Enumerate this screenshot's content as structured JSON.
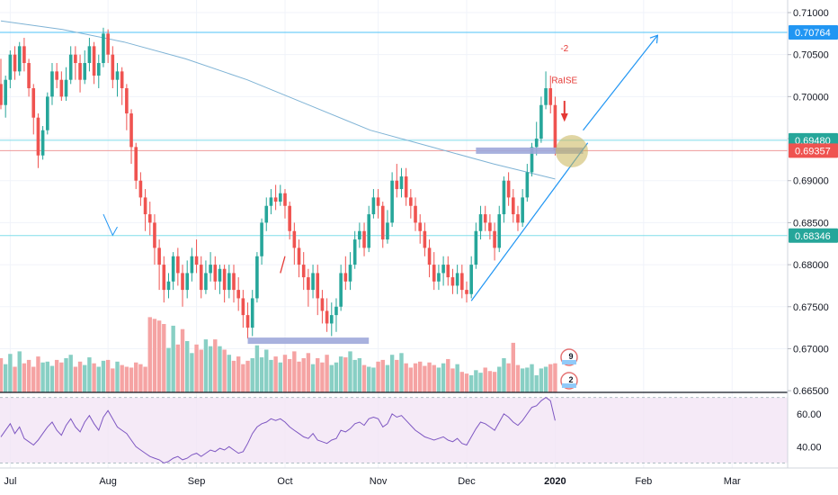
{
  "chart_data": {
    "type": "candlestick",
    "symbol_hint": "AUDUSD",
    "y_ticks": [
      "0.71000",
      "0.70500",
      "0.70000",
      "0.69500",
      "0.69000",
      "0.68500",
      "0.68000",
      "0.67500",
      "0.67000",
      "0.66500"
    ],
    "y_tick_values": [
      0.71,
      0.705,
      0.7,
      0.695,
      0.69,
      0.685,
      0.68,
      0.675,
      0.67,
      0.665
    ],
    "ylim": [
      0.6648,
      0.7115
    ],
    "x_ticks": [
      "Jul",
      "Aug",
      "Sep",
      "Oct",
      "Nov",
      "Dec",
      "2020",
      "Feb",
      "Mar"
    ],
    "x_tick_bold": [
      false,
      false,
      false,
      false,
      false,
      false,
      true,
      false,
      false
    ],
    "rsi_ticks": [
      "60.00",
      "40.00"
    ],
    "rsi_tick_values": [
      60,
      40
    ],
    "rsi_ylim": [
      27,
      72
    ],
    "price_tags": [
      {
        "label": "0.70764",
        "value": 0.70764,
        "color": "#2196f3"
      },
      {
        "label": "0.69480",
        "value": 0.6948,
        "color": "#26a69a"
      },
      {
        "label": "0.69357",
        "value": 0.69357,
        "color": "#ef5350"
      },
      {
        "label": "0.68346",
        "value": 0.68346,
        "color": "#26a69a"
      }
    ],
    "horizontal_lines": [
      {
        "value": 0.70764,
        "color": "#4fc3f7"
      },
      {
        "value": 0.6948,
        "color": "#80deea"
      },
      {
        "value": 0.69357,
        "color": "#ef9a9a"
      },
      {
        "value": 0.68346,
        "color": "#80deea"
      }
    ],
    "candles": [
      [
        0.7015,
        0.699,
        0.7045,
        0.6985
      ],
      [
        0.699,
        0.702,
        0.7025,
        0.6975
      ],
      [
        0.702,
        0.705,
        0.7055,
        0.701
      ],
      [
        0.705,
        0.703,
        0.706,
        0.702
      ],
      [
        0.703,
        0.706,
        0.7065,
        0.7025
      ],
      [
        0.706,
        0.704,
        0.707,
        0.703
      ],
      [
        0.704,
        0.701,
        0.7045,
        0.7
      ],
      [
        0.701,
        0.6975,
        0.7015,
        0.6955
      ],
      [
        0.6975,
        0.693,
        0.698,
        0.6915
      ],
      [
        0.693,
        0.696,
        0.6965,
        0.6925
      ],
      [
        0.696,
        0.7,
        0.7005,
        0.6955
      ],
      [
        0.7,
        0.703,
        0.704,
        0.699
      ],
      [
        0.703,
        0.702,
        0.704,
        0.701
      ],
      [
        0.702,
        0.7,
        0.703,
        0.6995
      ],
      [
        0.7,
        0.702,
        0.7035,
        0.6995
      ],
      [
        0.702,
        0.705,
        0.706,
        0.7015
      ],
      [
        0.705,
        0.704,
        0.706,
        0.702
      ],
      [
        0.704,
        0.702,
        0.705,
        0.7005
      ],
      [
        0.702,
        0.704,
        0.7055,
        0.7015
      ],
      [
        0.704,
        0.706,
        0.707,
        0.703
      ],
      [
        0.706,
        0.7025,
        0.7065,
        0.7015
      ],
      [
        0.7025,
        0.704,
        0.705,
        0.701
      ],
      [
        0.704,
        0.7075,
        0.7082,
        0.7035
      ],
      [
        0.7075,
        0.705,
        0.708,
        0.704
      ],
      [
        0.705,
        0.702,
        0.706,
        0.701
      ],
      [
        0.702,
        0.703,
        0.704,
        0.7
      ],
      [
        0.703,
        0.701,
        0.7035,
        0.699
      ],
      [
        0.701,
        0.698,
        0.7015,
        0.696
      ],
      [
        0.698,
        0.694,
        0.6985,
        0.692
      ],
      [
        0.694,
        0.69,
        0.6945,
        0.689
      ],
      [
        0.69,
        0.688,
        0.691,
        0.687
      ],
      [
        0.688,
        0.686,
        0.689,
        0.684
      ],
      [
        0.686,
        0.685,
        0.6875,
        0.6835
      ],
      [
        0.685,
        0.682,
        0.686,
        0.68
      ],
      [
        0.682,
        0.68,
        0.683,
        0.677
      ],
      [
        0.68,
        0.677,
        0.681,
        0.6755
      ],
      [
        0.677,
        0.678,
        0.679,
        0.676
      ],
      [
        0.678,
        0.681,
        0.6815,
        0.677
      ],
      [
        0.681,
        0.679,
        0.682,
        0.6775
      ],
      [
        0.679,
        0.677,
        0.68,
        0.675
      ],
      [
        0.677,
        0.679,
        0.6805,
        0.676
      ],
      [
        0.679,
        0.681,
        0.682,
        0.678
      ],
      [
        0.681,
        0.68,
        0.683,
        0.679
      ],
      [
        0.68,
        0.677,
        0.681,
        0.676
      ],
      [
        0.677,
        0.679,
        0.6805,
        0.6765
      ],
      [
        0.679,
        0.68,
        0.6815,
        0.678
      ],
      [
        0.68,
        0.678,
        0.681,
        0.677
      ],
      [
        0.678,
        0.6795,
        0.68,
        0.6765
      ],
      [
        0.6795,
        0.677,
        0.68,
        0.6755
      ],
      [
        0.677,
        0.679,
        0.68,
        0.676
      ],
      [
        0.679,
        0.677,
        0.68,
        0.6755
      ],
      [
        0.677,
        0.676,
        0.6785,
        0.6745
      ],
      [
        0.676,
        0.674,
        0.677,
        0.6725
      ],
      [
        0.674,
        0.6725,
        0.6755,
        0.6712
      ],
      [
        0.6725,
        0.676,
        0.677,
        0.6715
      ],
      [
        0.676,
        0.681,
        0.6815,
        0.6755
      ],
      [
        0.681,
        0.685,
        0.6855,
        0.68
      ],
      [
        0.685,
        0.687,
        0.688,
        0.684
      ],
      [
        0.687,
        0.688,
        0.689,
        0.686
      ],
      [
        0.688,
        0.6875,
        0.6895,
        0.6865
      ],
      [
        0.6875,
        0.6885,
        0.6895,
        0.687
      ],
      [
        0.6885,
        0.687,
        0.689,
        0.6855
      ],
      [
        0.687,
        0.684,
        0.6875,
        0.683
      ],
      [
        0.684,
        0.682,
        0.685,
        0.68
      ],
      [
        0.682,
        0.68,
        0.683,
        0.6785
      ],
      [
        0.68,
        0.6785,
        0.6815,
        0.677
      ],
      [
        0.6785,
        0.677,
        0.6795,
        0.675
      ],
      [
        0.677,
        0.679,
        0.68,
        0.676
      ],
      [
        0.679,
        0.676,
        0.68,
        0.674
      ],
      [
        0.676,
        0.6745,
        0.677,
        0.673
      ],
      [
        0.6745,
        0.673,
        0.676,
        0.672
      ],
      [
        0.673,
        0.674,
        0.6755,
        0.6715
      ],
      [
        0.674,
        0.675,
        0.676,
        0.672
      ],
      [
        0.675,
        0.679,
        0.68,
        0.6745
      ],
      [
        0.679,
        0.678,
        0.681,
        0.677
      ],
      [
        0.678,
        0.68,
        0.6815,
        0.677
      ],
      [
        0.68,
        0.683,
        0.684,
        0.6795
      ],
      [
        0.683,
        0.684,
        0.685,
        0.682
      ],
      [
        0.684,
        0.682,
        0.685,
        0.681
      ],
      [
        0.682,
        0.686,
        0.687,
        0.6815
      ],
      [
        0.686,
        0.688,
        0.689,
        0.6855
      ],
      [
        0.688,
        0.687,
        0.689,
        0.6855
      ],
      [
        0.687,
        0.683,
        0.6875,
        0.682
      ],
      [
        0.683,
        0.685,
        0.6865,
        0.6825
      ],
      [
        0.685,
        0.69,
        0.691,
        0.6845
      ],
      [
        0.69,
        0.689,
        0.692,
        0.688
      ],
      [
        0.689,
        0.6905,
        0.6915,
        0.688
      ],
      [
        0.6905,
        0.688,
        0.6915,
        0.687
      ],
      [
        0.688,
        0.687,
        0.689,
        0.6855
      ],
      [
        0.687,
        0.685,
        0.688,
        0.684
      ],
      [
        0.685,
        0.684,
        0.686,
        0.6825
      ],
      [
        0.684,
        0.682,
        0.685,
        0.681
      ],
      [
        0.682,
        0.68,
        0.683,
        0.6785
      ],
      [
        0.68,
        0.678,
        0.6815,
        0.677
      ],
      [
        0.678,
        0.679,
        0.68,
        0.677
      ],
      [
        0.679,
        0.68,
        0.681,
        0.6775
      ],
      [
        0.68,
        0.6785,
        0.681,
        0.6775
      ],
      [
        0.6785,
        0.6775,
        0.6795,
        0.6765
      ],
      [
        0.6775,
        0.679,
        0.68,
        0.6765
      ],
      [
        0.679,
        0.677,
        0.68,
        0.676
      ],
      [
        0.677,
        0.6765,
        0.678,
        0.6755
      ],
      [
        0.6765,
        0.68,
        0.681,
        0.676
      ],
      [
        0.68,
        0.684,
        0.685,
        0.6795
      ],
      [
        0.684,
        0.686,
        0.687,
        0.683
      ],
      [
        0.686,
        0.685,
        0.687,
        0.684
      ],
      [
        0.685,
        0.684,
        0.686,
        0.683
      ],
      [
        0.684,
        0.682,
        0.685,
        0.6805
      ],
      [
        0.682,
        0.686,
        0.687,
        0.6815
      ],
      [
        0.686,
        0.69,
        0.6905,
        0.685
      ],
      [
        0.69,
        0.688,
        0.691,
        0.687
      ],
      [
        0.688,
        0.686,
        0.689,
        0.685
      ],
      [
        0.686,
        0.685,
        0.687,
        0.684
      ],
      [
        0.685,
        0.688,
        0.689,
        0.6845
      ],
      [
        0.688,
        0.691,
        0.692,
        0.6875
      ],
      [
        0.691,
        0.694,
        0.6945,
        0.6905
      ],
      [
        0.694,
        0.695,
        0.697,
        0.693
      ],
      [
        0.695,
        0.699,
        0.7,
        0.6945
      ],
      [
        0.699,
        0.701,
        0.703,
        0.6985
      ],
      [
        0.701,
        0.699,
        0.7025,
        0.698
      ],
      [
        0.699,
        0.6936,
        0.7,
        0.693
      ]
    ],
    "volumes": [
      40,
      33,
      45,
      30,
      48,
      34,
      38,
      30,
      42,
      35,
      36,
      31,
      38,
      35,
      40,
      44,
      30,
      36,
      32,
      41,
      34,
      30,
      37,
      38,
      28,
      36,
      32,
      30,
      29,
      35,
      33,
      30,
      88,
      86,
      84,
      80,
      52,
      78,
      56,
      74,
      60,
      46,
      56,
      50,
      62,
      54,
      62,
      54,
      50,
      44,
      37,
      42,
      33,
      37,
      40,
      55,
      41,
      50,
      38,
      42,
      35,
      44,
      39,
      48,
      36,
      40,
      46,
      33,
      40,
      35,
      44,
      32,
      35,
      42,
      41,
      48,
      38,
      40,
      32,
      30,
      29,
      36,
      38,
      32,
      44,
      38,
      46,
      34,
      29,
      34,
      36,
      31,
      35,
      32,
      29,
      34,
      39,
      28,
      33,
      24,
      22,
      20,
      26,
      23,
      29,
      25,
      24,
      30,
      40,
      34,
      58,
      32,
      28,
      29,
      33,
      20,
      28,
      30,
      33,
      34
    ],
    "rsi": [
      46,
      50,
      54,
      48,
      52,
      45,
      43,
      41,
      44,
      48,
      52,
      55,
      50,
      47,
      53,
      57,
      52,
      49,
      55,
      59,
      54,
      50,
      58,
      62,
      57,
      52,
      50,
      48,
      44,
      40,
      38,
      36,
      34,
      33,
      32,
      30,
      31,
      33,
      34,
      32,
      33,
      35,
      36,
      34,
      36,
      38,
      37,
      39,
      38,
      40,
      38,
      36,
      37,
      42,
      48,
      52,
      54,
      55,
      57,
      56,
      57,
      55,
      52,
      50,
      48,
      46,
      45,
      48,
      44,
      43,
      42,
      44,
      45,
      50,
      49,
      51,
      54,
      55,
      53,
      57,
      58,
      57,
      52,
      54,
      60,
      58,
      59,
      56,
      53,
      50,
      48,
      46,
      45,
      44,
      45,
      46,
      44,
      43,
      45,
      42,
      41,
      46,
      51,
      55,
      54,
      52,
      50,
      55,
      60,
      58,
      55,
      53,
      56,
      60,
      64,
      65,
      68,
      70,
      68,
      56
    ],
    "ma": [
      0.709,
      0.708,
      0.7065,
      0.7045,
      0.702,
      0.699,
      0.696,
      0.694,
      0.692,
      0.6902
    ],
    "drawings": [
      {
        "kind": "zone-bar",
        "start": 53,
        "end": 79,
        "value": 0.67095,
        "color": "#9fa8da"
      },
      {
        "kind": "zone-bar",
        "start": 102,
        "end": 125,
        "value": 0.69357,
        "color": "#9fa8da"
      },
      {
        "kind": "trendline",
        "from": [
          101,
          0.6757
        ],
        "to": [
          126,
          0.6945
        ],
        "color": "#2196f3"
      },
      {
        "kind": "arrow",
        "from": [
          125,
          0.696
        ],
        "to": [
          141,
          0.7073
        ],
        "color": "#2196f3"
      },
      {
        "kind": "circle",
        "at": [
          122,
          0.6935
        ],
        "color": "#c9b458"
      }
    ],
    "annotations": [
      {
        "text": "-2",
        "color": "#e53935"
      },
      {
        "text": "RaISE",
        "color": "#e53935"
      }
    ],
    "events": [
      {
        "count": "9"
      },
      {
        "count": "2"
      }
    ]
  }
}
